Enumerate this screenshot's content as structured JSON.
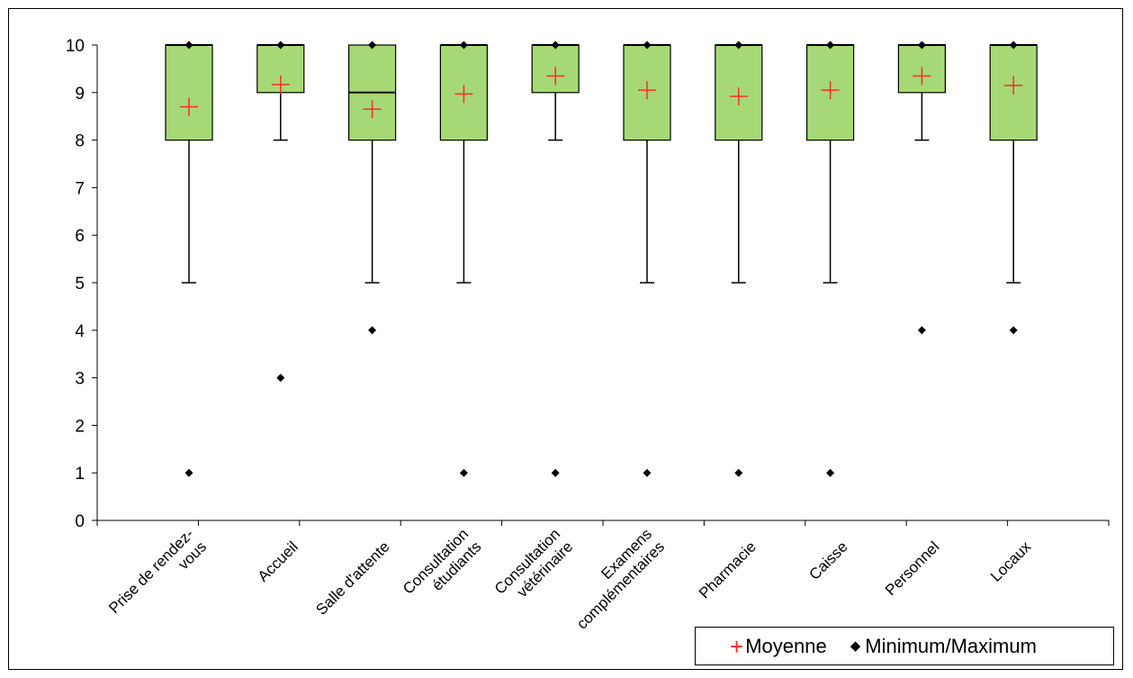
{
  "chart_data": {
    "type": "box",
    "categories": [
      [
        "Prise de rendez-",
        "vous"
      ],
      [
        "Accueil"
      ],
      [
        "Salle d'attente"
      ],
      [
        "Consultation",
        "étudiants"
      ],
      [
        "Consultation",
        "vétérinaire"
      ],
      [
        "Examens",
        "complémentaires"
      ],
      [
        "Pharmacie"
      ],
      [
        "Caisse"
      ],
      [
        "Personnel"
      ],
      [
        "Locaux"
      ]
    ],
    "boxes": [
      {
        "q1": 8,
        "median": 10,
        "q3": 10,
        "whisker_low": 5,
        "whisker_high": 10,
        "mean": 8.7,
        "min": 1,
        "max": 10
      },
      {
        "q1": 9,
        "median": 10,
        "q3": 10,
        "whisker_low": 8,
        "whisker_high": 10,
        "mean": 9.17,
        "min": 3,
        "max": 10
      },
      {
        "q1": 8,
        "median": 9,
        "q3": 10,
        "whisker_low": 5,
        "whisker_high": 10,
        "mean": 8.65,
        "min": 4,
        "max": 10
      },
      {
        "q1": 8,
        "median": 10,
        "q3": 10,
        "whisker_low": 5,
        "whisker_high": 10,
        "mean": 8.97,
        "min": 1,
        "max": 10
      },
      {
        "q1": 9,
        "median": 10,
        "q3": 10,
        "whisker_low": 8,
        "whisker_high": 10,
        "mean": 9.35,
        "min": 1,
        "max": 10
      },
      {
        "q1": 8,
        "median": 10,
        "q3": 10,
        "whisker_low": 5,
        "whisker_high": 10,
        "mean": 9.05,
        "min": 1,
        "max": 10
      },
      {
        "q1": 8,
        "median": 10,
        "q3": 10,
        "whisker_low": 5,
        "whisker_high": 10,
        "mean": 8.92,
        "min": 1,
        "max": 10
      },
      {
        "q1": 8,
        "median": 10,
        "q3": 10,
        "whisker_low": 5,
        "whisker_high": 10,
        "mean": 9.05,
        "min": 1,
        "max": 10
      },
      {
        "q1": 9,
        "median": 10,
        "q3": 10,
        "whisker_low": 8,
        "whisker_high": 10,
        "mean": 9.35,
        "min": 4,
        "max": 10
      },
      {
        "q1": 8,
        "median": 10,
        "q3": 10,
        "whisker_low": 5,
        "whisker_high": 10,
        "mean": 9.15,
        "min": 4,
        "max": 10
      }
    ],
    "ylim": [
      0,
      10
    ],
    "yticks": [
      0,
      1,
      2,
      3,
      4,
      5,
      6,
      7,
      8,
      9,
      10
    ],
    "grid": false,
    "legend": {
      "placement": "bottom-right",
      "entries": [
        "Moyenne",
        "Minimum/Maximum"
      ]
    },
    "colors": {
      "box_fill": "#a6d975",
      "mean_marker": "#ff2a2a",
      "minmax_marker": "#000000",
      "lines": "#000000"
    }
  },
  "legend": {
    "mean_label": "Moyenne",
    "minmax_label": "Minimum/Maximum",
    "mean_symbol": "+",
    "minmax_symbol": "◆"
  }
}
